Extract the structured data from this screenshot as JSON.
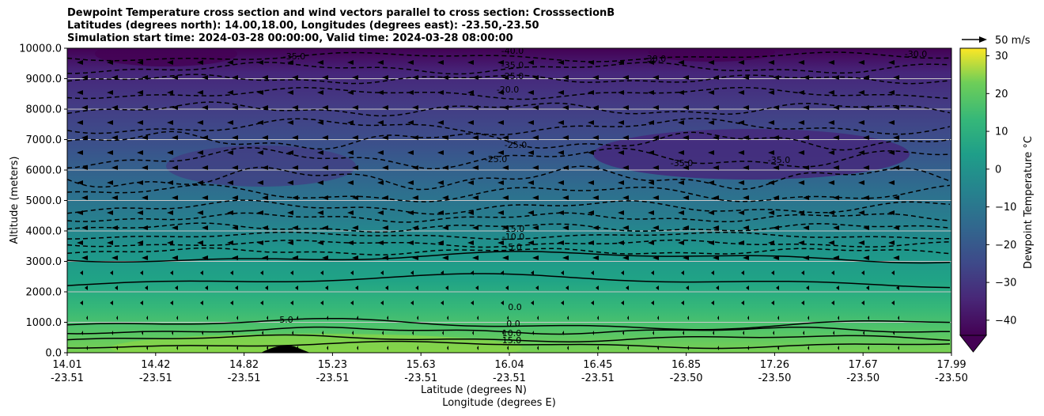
{
  "title_lines": [
    "Dewpoint Temperature cross section and wind vectors parallel to cross section: CrosssectionB",
    "Latitudes (degrees north): 14.00,18.00, Longitudes (degrees east): -23.50,-23.50",
    "Simulation start time: 2024-03-28 00:00:00, Valid time: 2024-03-28 08:00:00"
  ],
  "chart_data": {
    "type": "contour",
    "ylabel": "Altitude (meters)",
    "xlabel_line1": "Latitude (degrees N)",
    "xlabel_line2": "Longitude (degrees E)",
    "ylim": [
      0,
      10000
    ],
    "y_ticks": [
      "0.0",
      "1000.0",
      "2000.0",
      "3000.0",
      "4000.0",
      "5000.0",
      "6000.0",
      "7000.0",
      "8000.0",
      "9000.0",
      "10000.0"
    ],
    "x_ticks": [
      {
        "lat": "14.01",
        "lon": "-23.51"
      },
      {
        "lat": "14.42",
        "lon": "-23.51"
      },
      {
        "lat": "14.82",
        "lon": "-23.51"
      },
      {
        "lat": "15.23",
        "lon": "-23.51"
      },
      {
        "lat": "15.63",
        "lon": "-23.51"
      },
      {
        "lat": "16.04",
        "lon": "-23.51"
      },
      {
        "lat": "16.45",
        "lon": "-23.51"
      },
      {
        "lat": "16.85",
        "lon": "-23.50"
      },
      {
        "lat": "17.26",
        "lon": "-23.50"
      },
      {
        "lat": "17.67",
        "lon": "-23.50"
      },
      {
        "lat": "17.99",
        "lon": "-23.50"
      }
    ],
    "colorbar": {
      "label": "Dewpoint Temperature °C",
      "ticks": [
        "−40",
        "−30",
        "−20",
        "−10",
        "0",
        "10",
        "20",
        "30"
      ],
      "range": [
        -44,
        32
      ],
      "colormap": "viridis"
    },
    "quiver_key_label": "50 m/s",
    "contour_labels": [
      "-40.0",
      "-35.0",
      "-35.0",
      "-30.0",
      "-25.0",
      "-20.0",
      "-15.0",
      "-10.0",
      "-5.0",
      "0.0",
      "0.0",
      "10.0",
      "15.0",
      "5.0",
      "-25.0",
      "-25.0",
      "-30.0",
      "-35.0",
      "-35.0"
    ]
  }
}
